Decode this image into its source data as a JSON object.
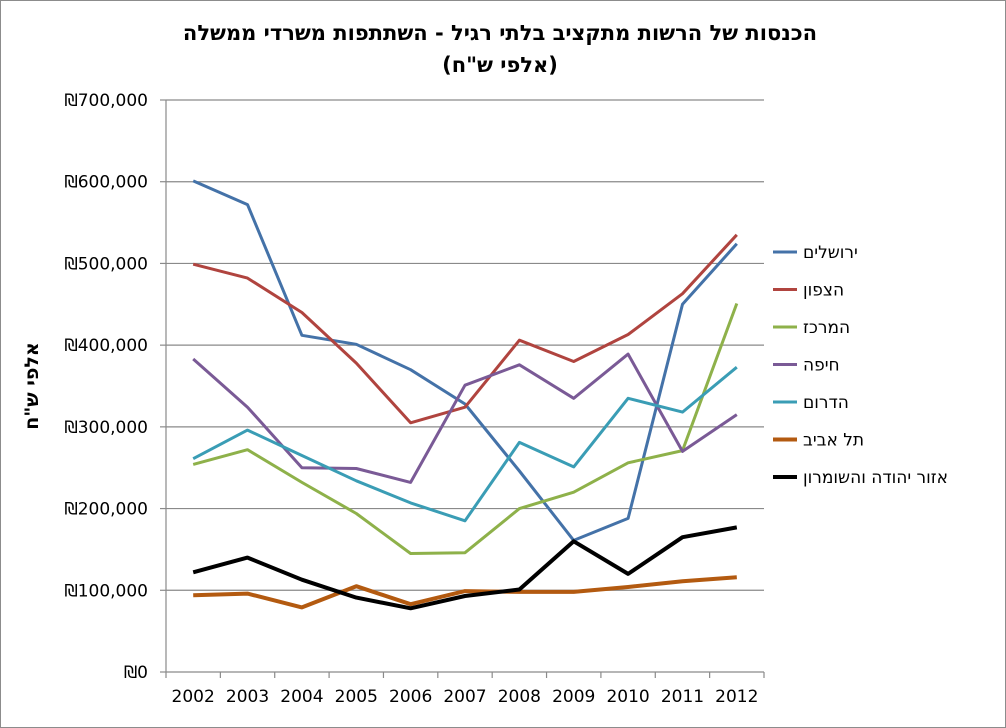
{
  "chart_data": {
    "type": "line",
    "title": [
      "הכנסות של הרשות מתקציב בלתי רגיל - השתתפות משרדי ממשלה",
      "(אלפי ש\"ח)"
    ],
    "xlabel": "",
    "ylabel": "אלפי ש\"ח",
    "ylim": [
      0,
      700000
    ],
    "yticks": [
      0,
      100000,
      200000,
      300000,
      400000,
      500000,
      600000,
      700000
    ],
    "ytick_labels": [
      "₪0",
      "₪100,000",
      "₪200,000",
      "₪300,000",
      "₪400,000",
      "₪500,000",
      "₪600,000",
      "₪700,000"
    ],
    "grid": true,
    "legend_position": "right",
    "categories": [
      "2002",
      "2003",
      "2004",
      "2005",
      "2006",
      "2007",
      "2008",
      "2009",
      "2010",
      "2011",
      "2012"
    ],
    "series": [
      {
        "name": "ירושלים",
        "color": "#4472a8",
        "width": 3,
        "values": [
          601000,
          572000,
          412000,
          401000,
          370000,
          328000,
          246000,
          161000,
          188000,
          450000,
          524000
        ]
      },
      {
        "name": "הצפון",
        "color": "#b0443f",
        "width": 3,
        "values": [
          499000,
          482000,
          440000,
          378000,
          305000,
          324000,
          406000,
          380000,
          413000,
          463000,
          535000
        ]
      },
      {
        "name": "המרכז",
        "color": "#8eb14a",
        "width": 3,
        "values": [
          254000,
          272000,
          232000,
          194000,
          145000,
          146000,
          200000,
          220000,
          256000,
          271000,
          451000
        ]
      },
      {
        "name": "חיפה",
        "color": "#7a5a96",
        "width": 3,
        "values": [
          383000,
          324000,
          250000,
          249000,
          232000,
          351000,
          376000,
          335000,
          389000,
          270000,
          315000
        ]
      },
      {
        "name": "הדרום",
        "color": "#3a9db5",
        "width": 3,
        "values": [
          261000,
          296000,
          265000,
          234000,
          207000,
          185000,
          281000,
          251000,
          335000,
          318000,
          373000
        ]
      },
      {
        "name": "תל אביב",
        "color": "#b35a10",
        "width": 4,
        "values": [
          94000,
          96000,
          79000,
          105000,
          83000,
          99000,
          98000,
          98000,
          104000,
          111000,
          116000
        ]
      },
      {
        "name": "אזור יהודה והשומרון",
        "color": "#000000",
        "width": 4,
        "values": [
          122000,
          140000,
          113000,
          91000,
          78000,
          93000,
          101000,
          160000,
          120000,
          165000,
          177000
        ]
      }
    ]
  }
}
